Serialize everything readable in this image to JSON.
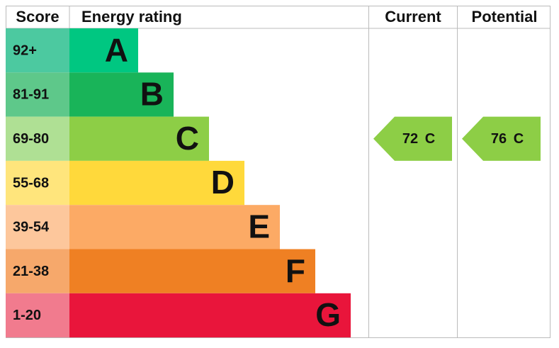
{
  "header": {
    "score": "Score",
    "rating": "Energy rating",
    "current": "Current",
    "potential": "Potential"
  },
  "rows": [
    {
      "score": "92+",
      "letter": "A",
      "color": "#00c781",
      "score_color": "#4cc9a0"
    },
    {
      "score": "81-91",
      "letter": "B",
      "color": "#19b459",
      "score_color": "#5ec88a"
    },
    {
      "score": "69-80",
      "letter": "C",
      "color": "#8dce46",
      "score_color": "#afe094"
    },
    {
      "score": "55-68",
      "letter": "D",
      "color": "#ffd93b",
      "score_color": "#ffe57c"
    },
    {
      "score": "39-54",
      "letter": "E",
      "color": "#fcaa65",
      "score_color": "#fdc79c"
    },
    {
      "score": "21-38",
      "letter": "F",
      "color": "#ef8023",
      "score_color": "#f6a86b"
    },
    {
      "score": "1-20",
      "letter": "G",
      "color": "#e9153b",
      "score_color": "#f17b8e"
    }
  ],
  "current": {
    "score": 72,
    "band": "C"
  },
  "potential": {
    "score": 76,
    "band": "C"
  }
}
